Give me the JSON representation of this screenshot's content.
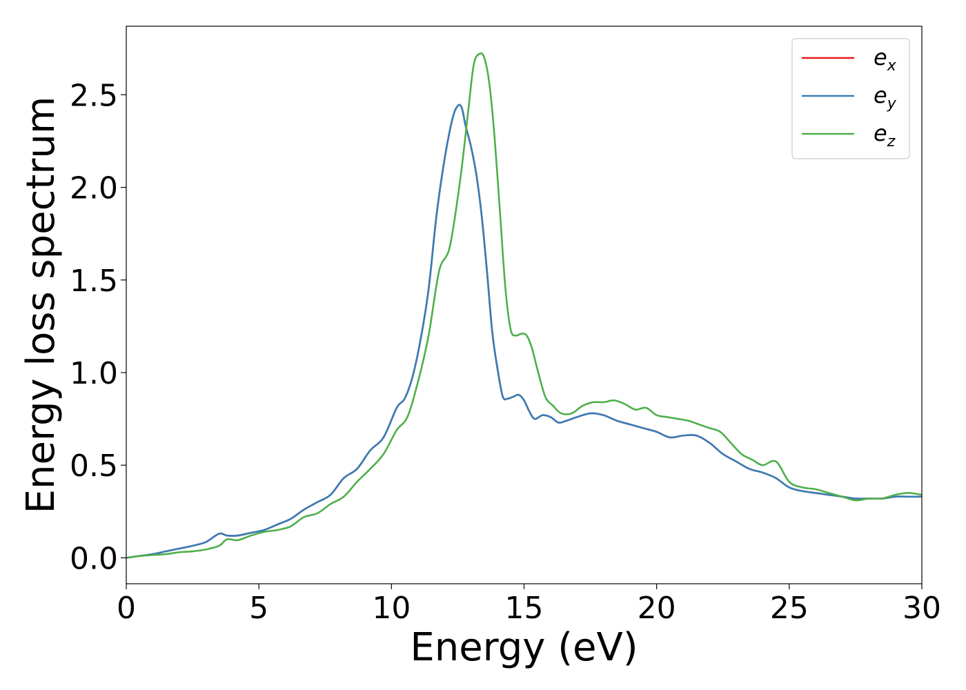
{
  "chart_data": {
    "type": "line",
    "xlabel": "Energy (eV)",
    "ylabel": "Energy loss spectrum",
    "xlim": [
      0,
      30
    ],
    "ylim": [
      -0.14,
      2.87
    ],
    "xticks": [
      "0",
      "5",
      "10",
      "15",
      "20",
      "25",
      "30"
    ],
    "yticks": [
      "0.0",
      "0.5",
      "1.0",
      "1.5",
      "2.0",
      "2.5"
    ],
    "grid": false,
    "legend_position": "top-right",
    "series": [
      {
        "name": "e_x",
        "legend_base": "e",
        "legend_sub": "x",
        "color": "#e41a1c",
        "x": [
          0,
          0.5,
          1,
          1.5,
          2,
          2.5,
          3,
          3.5,
          3.8,
          4.2,
          4.7,
          5.2,
          5.7,
          6.2,
          6.7,
          7.2,
          7.7,
          8.2,
          8.7,
          9.2,
          9.7,
          10.2,
          10.5,
          10.8,
          11.1,
          11.4,
          11.7,
          12,
          12.3,
          12.5,
          12.65,
          12.8,
          13,
          13.2,
          13.4,
          13.6,
          13.8,
          14,
          14.2,
          14.4,
          14.6,
          14.8,
          15,
          15.2,
          15.4,
          15.7,
          16,
          16.3,
          16.6,
          17,
          17.5,
          18,
          18.5,
          19,
          19.5,
          20,
          20.5,
          21,
          21.5,
          22,
          22.5,
          23,
          23.5,
          24,
          24.5,
          25,
          25.5,
          26,
          26.5,
          27,
          27.5,
          28,
          28.5,
          29,
          29.5,
          30
        ],
        "y": [
          0,
          0.01,
          0.02,
          0.035,
          0.05,
          0.065,
          0.085,
          0.13,
          0.12,
          0.12,
          0.135,
          0.15,
          0.18,
          0.21,
          0.26,
          0.3,
          0.34,
          0.43,
          0.48,
          0.58,
          0.65,
          0.81,
          0.86,
          0.98,
          1.18,
          1.45,
          1.85,
          2.15,
          2.37,
          2.44,
          2.43,
          2.33,
          2.22,
          2.07,
          1.85,
          1.55,
          1.22,
          1.02,
          0.87,
          0.86,
          0.87,
          0.88,
          0.85,
          0.79,
          0.75,
          0.77,
          0.76,
          0.73,
          0.74,
          0.76,
          0.78,
          0.77,
          0.74,
          0.72,
          0.7,
          0.68,
          0.65,
          0.66,
          0.66,
          0.62,
          0.56,
          0.52,
          0.48,
          0.46,
          0.43,
          0.38,
          0.36,
          0.35,
          0.34,
          0.33,
          0.32,
          0.32,
          0.32,
          0.33,
          0.33,
          0.33
        ]
      },
      {
        "name": "e_y",
        "legend_base": "e",
        "legend_sub": "y",
        "color": "#377eb8",
        "x": [
          0,
          0.5,
          1,
          1.5,
          2,
          2.5,
          3,
          3.5,
          3.8,
          4.2,
          4.7,
          5.2,
          5.7,
          6.2,
          6.7,
          7.2,
          7.7,
          8.2,
          8.7,
          9.2,
          9.7,
          10.2,
          10.5,
          10.8,
          11.1,
          11.4,
          11.7,
          12,
          12.3,
          12.5,
          12.65,
          12.8,
          13,
          13.2,
          13.4,
          13.6,
          13.8,
          14,
          14.2,
          14.4,
          14.6,
          14.8,
          15,
          15.2,
          15.4,
          15.7,
          16,
          16.3,
          16.6,
          17,
          17.5,
          18,
          18.5,
          19,
          19.5,
          20,
          20.5,
          21,
          21.5,
          22,
          22.5,
          23,
          23.5,
          24,
          24.5,
          25,
          25.5,
          26,
          26.5,
          27,
          27.5,
          28,
          28.5,
          29,
          29.5,
          30
        ],
        "y": [
          0,
          0.01,
          0.02,
          0.035,
          0.05,
          0.065,
          0.085,
          0.13,
          0.12,
          0.12,
          0.135,
          0.15,
          0.18,
          0.21,
          0.26,
          0.3,
          0.34,
          0.43,
          0.48,
          0.58,
          0.65,
          0.81,
          0.86,
          0.98,
          1.18,
          1.45,
          1.85,
          2.15,
          2.37,
          2.44,
          2.43,
          2.33,
          2.22,
          2.07,
          1.85,
          1.55,
          1.22,
          1.02,
          0.87,
          0.86,
          0.87,
          0.88,
          0.85,
          0.79,
          0.75,
          0.77,
          0.76,
          0.73,
          0.74,
          0.76,
          0.78,
          0.77,
          0.74,
          0.72,
          0.7,
          0.68,
          0.65,
          0.66,
          0.66,
          0.62,
          0.56,
          0.52,
          0.48,
          0.46,
          0.43,
          0.38,
          0.36,
          0.35,
          0.34,
          0.33,
          0.32,
          0.32,
          0.32,
          0.33,
          0.33,
          0.33
        ]
      },
      {
        "name": "e_z",
        "legend_base": "e",
        "legend_sub": "z",
        "color": "#4daf4a",
        "x": [
          0,
          0.5,
          1,
          1.5,
          2,
          2.5,
          3,
          3.5,
          3.8,
          4.2,
          4.7,
          5.2,
          5.7,
          6.2,
          6.7,
          7.2,
          7.7,
          8.2,
          8.7,
          9.2,
          9.7,
          10.2,
          10.6,
          11,
          11.4,
          11.8,
          12.2,
          12.6,
          12.9,
          13.1,
          13.3,
          13.5,
          13.7,
          13.9,
          14.1,
          14.3,
          14.5,
          14.7,
          14.9,
          15.1,
          15.3,
          15.5,
          15.8,
          16.1,
          16.4,
          16.8,
          17.2,
          17.6,
          18,
          18.4,
          18.8,
          19.2,
          19.6,
          20,
          20.4,
          20.8,
          21.2,
          21.6,
          22,
          22.4,
          22.8,
          23.2,
          23.6,
          24,
          24.5,
          25,
          25.5,
          26,
          26.5,
          27,
          27.5,
          28,
          28.5,
          29,
          29.5,
          30
        ],
        "y": [
          0,
          0.01,
          0.015,
          0.02,
          0.03,
          0.035,
          0.045,
          0.065,
          0.1,
          0.095,
          0.12,
          0.14,
          0.15,
          0.17,
          0.22,
          0.24,
          0.29,
          0.33,
          0.41,
          0.48,
          0.56,
          0.69,
          0.76,
          0.95,
          1.2,
          1.55,
          1.68,
          2.05,
          2.42,
          2.66,
          2.72,
          2.7,
          2.55,
          2.25,
          1.85,
          1.45,
          1.23,
          1.2,
          1.21,
          1.2,
          1.13,
          1.02,
          0.87,
          0.82,
          0.78,
          0.78,
          0.82,
          0.84,
          0.84,
          0.85,
          0.83,
          0.8,
          0.81,
          0.77,
          0.76,
          0.75,
          0.74,
          0.72,
          0.7,
          0.68,
          0.62,
          0.56,
          0.53,
          0.5,
          0.52,
          0.41,
          0.38,
          0.37,
          0.35,
          0.33,
          0.31,
          0.32,
          0.32,
          0.34,
          0.35,
          0.34
        ]
      }
    ]
  }
}
